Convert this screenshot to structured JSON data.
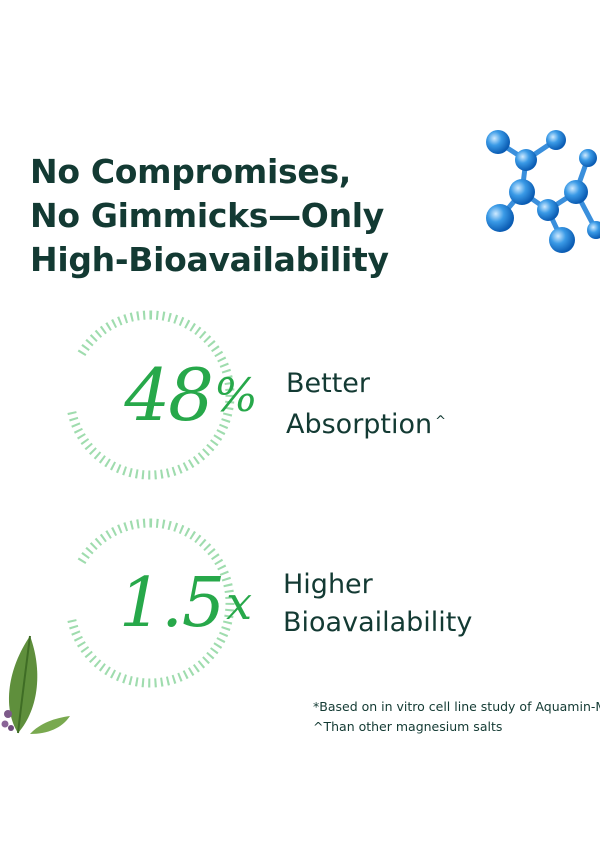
{
  "headline": {
    "line1": "No Compromises,",
    "line2": "No Gimmicks—Only",
    "line3": "High-Bioavailability"
  },
  "stats": [
    {
      "value": "48",
      "unit": "%",
      "line1": "Better",
      "line2": "Absorption",
      "mark": "^"
    },
    {
      "value": "1.5",
      "unit": "x",
      "line1": "Higher",
      "line2": "Bioavailability",
      "mark": ""
    }
  ],
  "footnotes": {
    "note1": "*Based on in vitro cell line study of Aquamin-Mg",
    "note2": "^Than other magnesium salts"
  },
  "colors": {
    "text": "#133a33",
    "accent": "#27a84a",
    "ring": "#9fdcae",
    "molecule": "#2b8fe0"
  }
}
